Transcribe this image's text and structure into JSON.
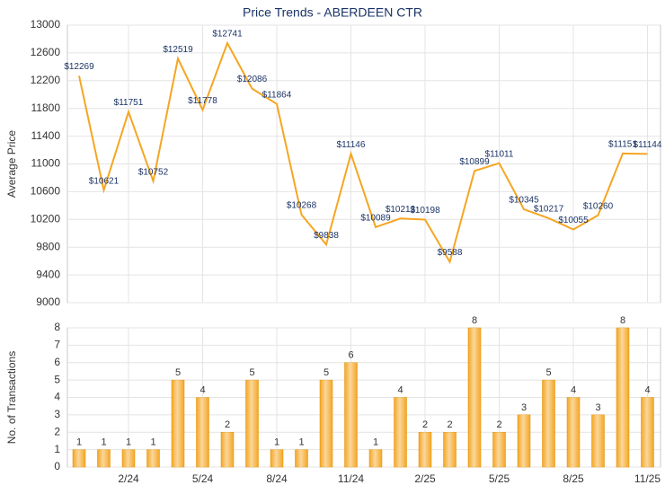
{
  "chart_data": [
    {
      "type": "line",
      "title": "Price Trends - ABERDEEN CTR",
      "y_label": "Average Price",
      "color": "#f5a623",
      "values": [
        12269,
        10621,
        11751,
        10752,
        12519,
        11778,
        12741,
        12086,
        11864,
        10268,
        9838,
        11146,
        10089,
        10213,
        10198,
        9588,
        10899,
        11011,
        10345,
        10217,
        10055,
        10260,
        11151,
        11144
      ],
      "value_labels": [
        "$12269",
        "$10621",
        "$11751",
        "$10752",
        "$12519",
        "$11778",
        "$12741",
        "$12086",
        "$11864",
        "$10268",
        "$9838",
        "$11146",
        "$10089",
        "$10213",
        "$10198",
        "$9588",
        "$10899",
        "$11011",
        "$10345",
        "$10217",
        "$10055",
        "$10260",
        "$11151",
        "$11144"
      ],
      "ylim": [
        9000,
        13000
      ],
      "yticks": [
        9000,
        9400,
        9800,
        10200,
        10600,
        11000,
        11400,
        11800,
        12200,
        12600,
        13000
      ],
      "grid": true
    },
    {
      "type": "bar",
      "y_label": "No. of Transactions",
      "color": "#f5a623",
      "categories": [
        null,
        null,
        "2/24",
        null,
        null,
        "5/24",
        null,
        null,
        "8/24",
        null,
        null,
        "11/24",
        null,
        null,
        "2/25",
        null,
        null,
        "5/25",
        null,
        null,
        "8/25",
        null,
        null,
        "11/25"
      ],
      "values": [
        1,
        1,
        1,
        1,
        5,
        4,
        2,
        5,
        1,
        1,
        5,
        6,
        1,
        4,
        2,
        2,
        8,
        2,
        3,
        5,
        4,
        3,
        8,
        4
      ],
      "ylim": [
        0,
        8
      ],
      "yticks": [
        0,
        1,
        2,
        3,
        4,
        5,
        6,
        7,
        8
      ],
      "grid": true
    }
  ]
}
